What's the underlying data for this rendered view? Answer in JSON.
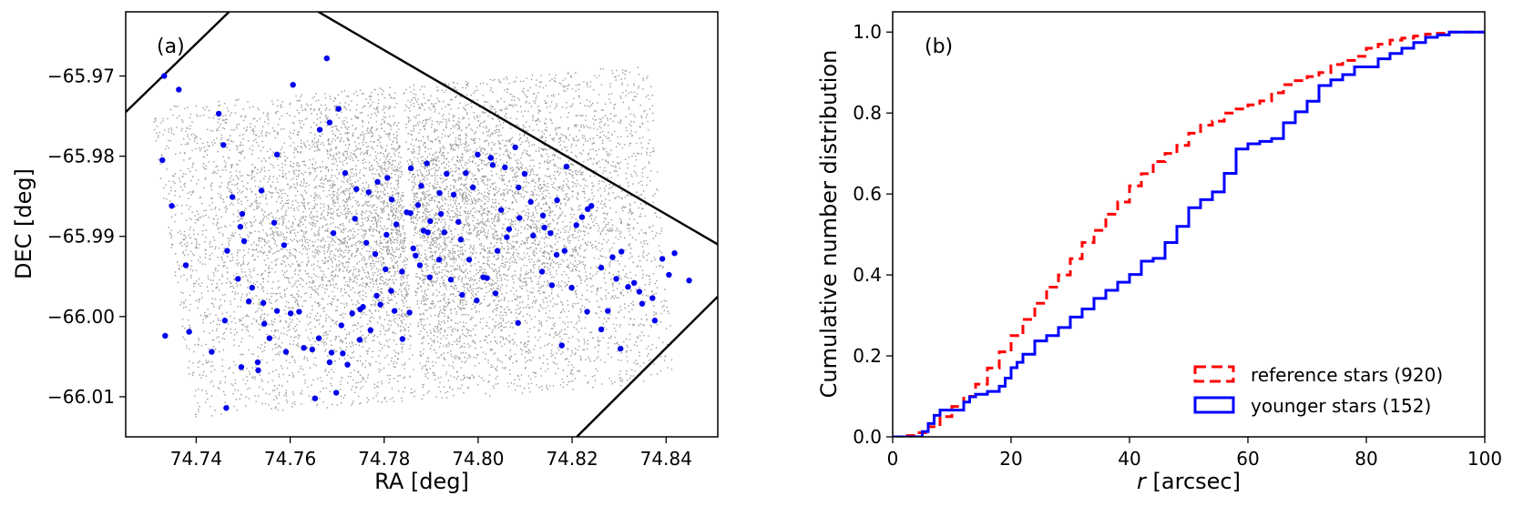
{
  "chart_data": [
    {
      "type": "scatter",
      "panel_label": "(a)",
      "xlabel": "RA [deg]",
      "ylabel": "DEC [deg]",
      "xlim": [
        74.725,
        74.851
      ],
      "ylim": [
        -66.015,
        -65.962
      ],
      "x_ticks": [
        74.74,
        74.76,
        74.78,
        74.8,
        74.82,
        74.84
      ],
      "x_tick_labels": [
        "74.74",
        "74.76",
        "74.78",
        "74.80",
        "74.82",
        "74.84"
      ],
      "y_ticks": [
        -65.97,
        -65.98,
        -65.99,
        -66.0,
        -66.01
      ],
      "y_tick_labels": [
        "−65.97",
        "−65.98",
        "−65.99",
        "−66.00",
        "−66.01"
      ],
      "grid": false,
      "colors": {
        "background_stars": "#9a9a9a",
        "younger_stars": "#0000ee",
        "boundary_lines": "#000000"
      },
      "field_footprint_deg": {
        "x": [
          74.7305,
          74.7395,
          74.8335,
          74.8415,
          74.8365,
          74.7355
        ],
        "y": [
          -65.9755,
          -66.0125,
          -66.0085,
          -66.0065,
          -65.9685,
          -65.9735
        ]
      },
      "chip_gap_deg": {
        "x": [
          74.7825,
          74.7905
        ],
        "y": [
          -65.97,
          -66.0095
        ]
      },
      "boundary_lines_deg": [
        {
          "x": [
            74.725,
            74.747
          ],
          "y": [
            -65.9745,
            -65.962
          ]
        },
        {
          "x": [
            74.766,
            74.851
          ],
          "y": [
            -65.962,
            -65.991
          ]
        },
        {
          "x": [
            74.821,
            74.851
          ],
          "y": [
            -66.015,
            -65.9975
          ]
        }
      ],
      "series": [
        {
          "name": "",
          "color": "#0000ee",
          "x": [
            74.7332,
            74.7363,
            74.7448,
            74.7678,
            74.7606,
            74.7328,
            74.7348,
            74.7378,
            74.7385,
            74.7334,
            74.7458,
            74.7477,
            74.7498,
            74.7494,
            74.7502,
            74.7539,
            74.7519,
            74.7543,
            74.7572,
            74.7566,
            74.7587,
            74.7663,
            74.7684,
            74.7703,
            74.7717,
            74.7741,
            74.7692,
            74.7738,
            74.7767,
            74.7786,
            74.7762,
            74.7807,
            74.7816,
            74.7857,
            74.7856,
            74.7879,
            74.7891,
            74.7884,
            74.7918,
            74.7933,
            74.7958,
            74.7989,
            74.8031,
            74.8049,
            74.8079,
            74.8061,
            74.8099,
            74.8138,
            74.8154,
            74.8168,
            74.8188,
            74.8221,
            74.8241,
            74.8286,
            74.8305,
            74.8332,
            74.8371,
            74.8392,
            74.8418,
            74.8406,
            74.8449,
            74.8343,
            74.8276,
            74.8178,
            74.8085,
            74.8037,
            74.8011,
            74.7981,
            74.7963,
            74.7928,
            74.7897,
            74.7876,
            74.7867,
            74.7854,
            74.7839,
            74.7822,
            74.7803,
            74.7784,
            74.7749,
            74.7712,
            74.7688,
            74.7661,
            74.7647,
            74.7629,
            74.7619,
            74.7591,
            74.7572,
            74.7545,
            74.7531,
            74.7512,
            74.7489,
            74.7466,
            74.7461,
            74.7433,
            74.7464,
            74.7496,
            74.7532,
            74.7556,
            74.7601,
            74.7653,
            74.7684,
            74.7709,
            74.7732,
            74.7755,
            74.7781,
            74.7805,
            74.7826,
            74.7848,
            74.7872,
            74.7898,
            74.7917,
            74.7942,
            74.7966,
            74.7997,
            74.8019,
            74.8041,
            74.8066,
            74.8088,
            74.8117,
            74.8136,
            74.8157,
            74.8184,
            74.8209,
            74.8233,
            74.8262,
            74.8294,
            74.8319,
            74.8349,
            74.8376,
            74.8303,
            74.8262,
            74.8232,
            74.8199,
            74.8167,
            74.8141,
            74.8112,
            74.8086,
            74.8057,
            74.8027,
            74.7999,
            74.7974,
            74.7948,
            74.7921,
            74.7893,
            74.7862,
            74.7838,
            74.7815,
            74.7792,
            74.7771,
            74.7748,
            74.7722,
            74.7698
          ],
          "y": [
            -65.97,
            -65.9717,
            -65.9747,
            -65.9678,
            -65.9711,
            -65.9805,
            -65.9862,
            -65.9936,
            -66.0019,
            -66.0024,
            -65.9786,
            -65.9851,
            -65.9872,
            -65.9888,
            -65.9906,
            -65.9843,
            -65.9964,
            -65.9983,
            -65.9798,
            -65.9883,
            -65.9911,
            -65.9767,
            -65.9758,
            -65.9741,
            -65.9821,
            -65.9841,
            -65.9896,
            -65.9878,
            -65.9845,
            -65.9832,
            -65.9908,
            -65.9827,
            -65.9854,
            -65.9815,
            -65.9871,
            -65.9837,
            -65.9809,
            -65.9893,
            -65.9846,
            -65.9822,
            -65.9882,
            -65.9839,
            -65.9811,
            -65.9867,
            -65.9789,
            -65.9901,
            -65.9822,
            -65.9874,
            -65.9896,
            -65.9855,
            -65.9813,
            -65.9876,
            -65.9862,
            -65.9926,
            -65.9919,
            -65.9958,
            -65.9977,
            -65.9928,
            -65.9921,
            -65.9948,
            -65.9955,
            -65.9969,
            -65.9993,
            -66.0036,
            -66.0008,
            -65.9971,
            -65.9951,
            -65.9929,
            -65.9904,
            -65.9895,
            -65.9951,
            -65.9936,
            -65.9924,
            -65.9995,
            -66.0028,
            -65.9993,
            -65.9941,
            -65.9974,
            -65.9991,
            -66.0046,
            -66.0045,
            -66.0027,
            -66.0041,
            -66.0039,
            -65.9994,
            -66.0044,
            -65.9993,
            -66.0009,
            -66.0057,
            -65.9981,
            -65.9953,
            -65.9918,
            -66.0005,
            -66.0044,
            -66.0114,
            -66.0063,
            -66.0067,
            -66.0027,
            -65.9996,
            -66.0102,
            -66.0057,
            -66.0011,
            -65.9996,
            -65.9988,
            -65.9922,
            -65.9898,
            -65.9885,
            -65.987,
            -65.9861,
            -65.9881,
            -65.9929,
            -65.9954,
            -65.9973,
            -65.998,
            -65.9952,
            -65.9918,
            -65.9891,
            -65.9877,
            -65.9899,
            -65.9944,
            -65.9961,
            -65.9918,
            -65.9886,
            -65.9866,
            -65.9939,
            -65.9953,
            -65.9963,
            -65.9984,
            -66.0005,
            -66.004,
            -66.0016,
            -65.9994,
            -65.9964,
            -65.9923,
            -65.9889,
            -65.9857,
            -65.9839,
            -65.9814,
            -65.9802,
            -65.9798,
            -65.9821,
            -65.9848,
            -65.9872,
            -65.9895,
            -65.9915,
            -65.9944,
            -65.9968,
            -65.9985,
            -66.0017,
            -66.0029,
            -66.006,
            -66.0095
          ]
        }
      ]
    },
    {
      "type": "line",
      "panel_label": "(b)",
      "xlabel": "r [arcsec]",
      "xlabel_italic_part": "r",
      "xlabel_rest": " [arcsec]",
      "ylabel": "Cumulative number distribution",
      "xlim": [
        0,
        100
      ],
      "ylim": [
        0,
        1.05
      ],
      "x_ticks": [
        0,
        20,
        40,
        60,
        80,
        100
      ],
      "x_tick_labels": [
        "0",
        "20",
        "40",
        "60",
        "80",
        "100"
      ],
      "y_ticks": [
        0.0,
        0.2,
        0.4,
        0.6,
        0.8,
        1.0
      ],
      "y_tick_labels": [
        "0.0",
        "0.2",
        "0.4",
        "0.6",
        "0.8",
        "1.0"
      ],
      "grid": false,
      "legend_position": "bottom-right",
      "series": [
        {
          "name": "reference stars (920)",
          "color": "#ff0000",
          "style": "dashed-step",
          "x": [
            0,
            2,
            4,
            6,
            8,
            10,
            12,
            14,
            16,
            18,
            20,
            22,
            24,
            26,
            28,
            30,
            32,
            34,
            36,
            38,
            40,
            42,
            44,
            46,
            48,
            50,
            52,
            54,
            56,
            58,
            60,
            62,
            64,
            66,
            68,
            70,
            72,
            74,
            76,
            78,
            80,
            82,
            84,
            86,
            88,
            90,
            92,
            94,
            96,
            98,
            100
          ],
          "y": [
            0.0,
            0.003,
            0.01,
            0.025,
            0.05,
            0.075,
            0.1,
            0.13,
            0.17,
            0.21,
            0.25,
            0.29,
            0.33,
            0.37,
            0.4,
            0.44,
            0.48,
            0.51,
            0.55,
            0.58,
            0.62,
            0.65,
            0.68,
            0.7,
            0.72,
            0.75,
            0.77,
            0.78,
            0.8,
            0.81,
            0.82,
            0.83,
            0.85,
            0.87,
            0.88,
            0.89,
            0.9,
            0.92,
            0.93,
            0.94,
            0.96,
            0.97,
            0.98,
            0.985,
            0.99,
            0.995,
            0.997,
            1.0,
            1.0,
            1.0,
            1.0
          ]
        },
        {
          "name": "younger stars (152)",
          "color": "#0000ff",
          "style": "solid-step",
          "x": [
            0,
            4,
            5,
            6,
            7,
            8,
            10,
            12,
            13,
            14,
            16,
            18,
            19,
            20,
            21,
            22,
            24,
            26,
            28,
            30,
            32,
            34,
            36,
            38,
            40,
            42,
            44,
            46,
            48,
            50,
            52,
            54,
            56,
            58,
            60,
            62,
            64,
            66,
            68,
            70,
            72,
            74,
            76,
            78,
            80,
            82,
            84,
            86,
            88,
            90,
            92,
            94,
            96,
            98,
            100
          ],
          "y": [
            0.0,
            0.0,
            0.013,
            0.033,
            0.053,
            0.066,
            0.066,
            0.086,
            0.099,
            0.105,
            0.112,
            0.125,
            0.145,
            0.171,
            0.184,
            0.204,
            0.237,
            0.25,
            0.27,
            0.296,
            0.316,
            0.342,
            0.362,
            0.382,
            0.401,
            0.434,
            0.441,
            0.48,
            0.52,
            0.566,
            0.586,
            0.605,
            0.651,
            0.711,
            0.724,
            0.73,
            0.737,
            0.776,
            0.803,
            0.829,
            0.868,
            0.882,
            0.895,
            0.914,
            0.914,
            0.934,
            0.947,
            0.96,
            0.974,
            0.987,
            0.993,
            1.0,
            1.0,
            1.0,
            1.0
          ]
        }
      ]
    }
  ]
}
